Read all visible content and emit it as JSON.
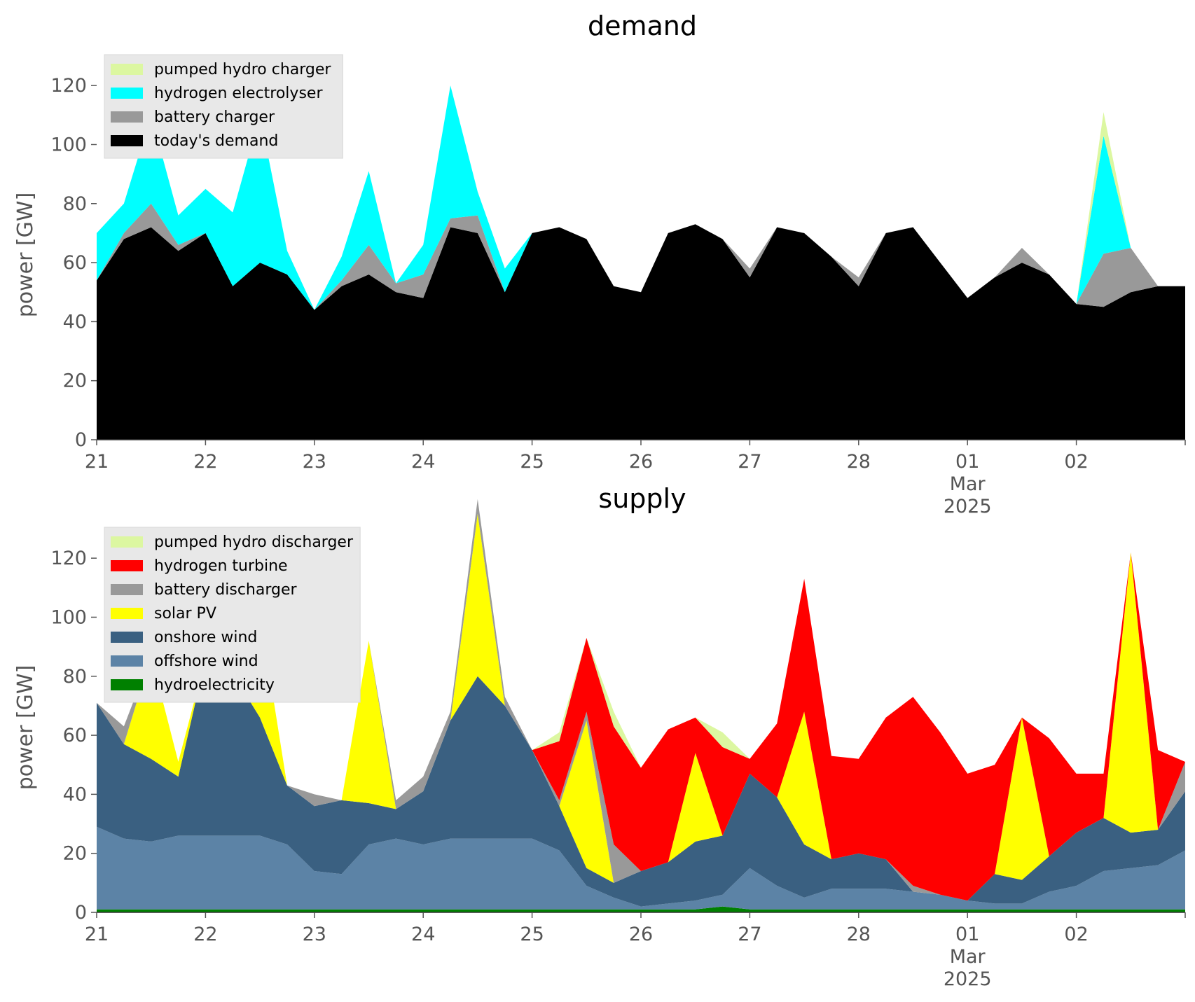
{
  "colors": {
    "pumped_hydro": "#dcf7a1",
    "hydrogen_electrolyser": "#00ffff",
    "battery": "#999999",
    "demand": "#000000",
    "hydrogen_turbine": "#ff0000",
    "solar": "#ffff00",
    "onshore": "#3a6081",
    "offshore": "#5c83a6",
    "hydro": "#008000",
    "legend_bg": "#e8e8e8",
    "tick_text": "#555555"
  },
  "chart_data": [
    {
      "type": "area",
      "title": "demand",
      "ylabel": "power [GW]",
      "ylim": [
        0,
        130
      ],
      "yticks": [
        "0",
        "20",
        "40",
        "60",
        "80",
        "100",
        "120"
      ],
      "xticks": [
        "21",
        "22",
        "23",
        "24",
        "25",
        "26",
        "27",
        "28",
        "01",
        "02"
      ],
      "xtick_sub": [
        "Mar",
        "2025"
      ],
      "x_start": "2025-02-21",
      "x_end": "2025-03-03",
      "x": [
        0,
        0.25,
        0.5,
        0.75,
        1,
        1.25,
        1.5,
        1.75,
        2,
        2.25,
        2.5,
        2.75,
        3,
        3.25,
        3.5,
        3.75,
        4,
        4.25,
        4.5,
        4.75,
        5,
        5.25,
        5.5,
        5.75,
        6,
        6.25,
        6.5,
        6.75,
        7,
        7.25,
        7.5,
        7.75,
        8,
        8.25,
        8.5,
        8.75,
        9,
        9.25,
        9.5,
        9.75,
        10
      ],
      "legend": [
        "pumped hydro charger",
        "hydrogen electrolyser",
        "battery charger",
        "today's demand"
      ],
      "legend_position": "upper left",
      "series": [
        {
          "name": "today's demand",
          "color_key": "demand",
          "values": [
            54,
            68,
            72,
            64,
            70,
            52,
            60,
            56,
            44,
            52,
            56,
            50,
            48,
            72,
            70,
            50,
            70,
            72,
            68,
            52,
            50,
            70,
            73,
            68,
            55,
            72,
            70,
            62,
            52,
            70,
            72,
            60,
            48,
            55,
            60,
            56,
            46,
            45,
            50,
            52,
            52
          ]
        },
        {
          "name": "battery charger",
          "color_key": "battery",
          "values": [
            0,
            2,
            8,
            2,
            0,
            0,
            0,
            0,
            0,
            2,
            10,
            3,
            8,
            3,
            6,
            0,
            0,
            0,
            0,
            0,
            0,
            0,
            0,
            0,
            3,
            0,
            0,
            0,
            3,
            0,
            0,
            0,
            0,
            0,
            5,
            0,
            0,
            18,
            15,
            0,
            0
          ]
        },
        {
          "name": "hydrogen electrolyser",
          "color_key": "hydrogen_electrolyser",
          "values": [
            16,
            10,
            30,
            10,
            15,
            25,
            50,
            8,
            0,
            8,
            25,
            0,
            10,
            45,
            8,
            8,
            0,
            0,
            0,
            0,
            0,
            0,
            0,
            0,
            0,
            0,
            0,
            0,
            0,
            0,
            0,
            0,
            0,
            0,
            0,
            0,
            0,
            40,
            0,
            0,
            0
          ]
        },
        {
          "name": "pumped hydro charger",
          "color_key": "pumped_hydro",
          "values": [
            0,
            0,
            0,
            0,
            0,
            0,
            0,
            0,
            0,
            0,
            0,
            0,
            0,
            0,
            0,
            0,
            0,
            0,
            0,
            0,
            0,
            0,
            0,
            0,
            0,
            0,
            0,
            0,
            0,
            0,
            0,
            0,
            0,
            0,
            0,
            0,
            0,
            8,
            0,
            0,
            0
          ]
        }
      ]
    },
    {
      "type": "area",
      "title": "supply",
      "ylabel": "power [GW]",
      "ylim": [
        0,
        130
      ],
      "yticks": [
        "0",
        "20",
        "40",
        "60",
        "80",
        "100",
        "120"
      ],
      "xticks": [
        "21",
        "22",
        "23",
        "24",
        "25",
        "26",
        "27",
        "28",
        "01",
        "02"
      ],
      "xtick_sub": [
        "Mar",
        "2025"
      ],
      "x_start": "2025-02-21",
      "x_end": "2025-03-03",
      "x": [
        0,
        0.25,
        0.5,
        0.75,
        1,
        1.25,
        1.5,
        1.75,
        2,
        2.25,
        2.5,
        2.75,
        3,
        3.25,
        3.5,
        3.75,
        4,
        4.25,
        4.5,
        4.75,
        5,
        5.25,
        5.5,
        5.75,
        6,
        6.25,
        6.5,
        6.75,
        7,
        7.25,
        7.5,
        7.75,
        8,
        8.25,
        8.5,
        8.75,
        9,
        9.25,
        9.5,
        9.75,
        10
      ],
      "legend": [
        "pumped hydro discharger",
        "hydrogen turbine",
        "battery discharger",
        "solar PV",
        "onshore wind",
        "offshore wind",
        "hydroelectricity"
      ],
      "legend_position": "upper left",
      "series": [
        {
          "name": "hydroelectricity",
          "color_key": "hydro",
          "values": [
            1,
            1,
            1,
            1,
            1,
            1,
            1,
            1,
            1,
            1,
            1,
            1,
            1,
            1,
            1,
            1,
            1,
            1,
            1,
            1,
            1,
            1,
            1,
            2,
            1,
            1,
            1,
            1,
            1,
            1,
            1,
            1,
            1,
            1,
            1,
            1,
            1,
            1,
            1,
            1,
            1
          ]
        },
        {
          "name": "offshore wind",
          "color_key": "offshore",
          "values": [
            28,
            24,
            23,
            25,
            25,
            25,
            25,
            22,
            13,
            12,
            22,
            24,
            22,
            24,
            24,
            24,
            24,
            20,
            8,
            4,
            1,
            2,
            3,
            4,
            14,
            8,
            4,
            7,
            7,
            7,
            6,
            5,
            3,
            2,
            2,
            6,
            8,
            13,
            14,
            15,
            20
          ]
        },
        {
          "name": "onshore wind",
          "color_key": "onshore",
          "values": [
            42,
            32,
            28,
            20,
            60,
            55,
            40,
            20,
            22,
            25,
            14,
            10,
            18,
            40,
            55,
            45,
            30,
            15,
            6,
            5,
            12,
            14,
            20,
            20,
            32,
            30,
            18,
            10,
            12,
            10,
            0,
            0,
            0,
            10,
            8,
            12,
            18,
            18,
            12,
            12,
            20
          ]
        },
        {
          "name": "solar PV",
          "color_key": "solar",
          "values": [
            0,
            0,
            35,
            5,
            0,
            0,
            35,
            0,
            0,
            0,
            55,
            0,
            0,
            0,
            55,
            0,
            0,
            0,
            50,
            0,
            0,
            0,
            30,
            0,
            0,
            0,
            45,
            0,
            0,
            0,
            0,
            0,
            0,
            0,
            55,
            0,
            0,
            0,
            95,
            0,
            0
          ]
        },
        {
          "name": "battery discharger",
          "color_key": "battery",
          "values": [
            0,
            6,
            0,
            0,
            0,
            0,
            0,
            0,
            4,
            0,
            0,
            3,
            5,
            3,
            5,
            3,
            0,
            2,
            3,
            13,
            0,
            0,
            0,
            0,
            0,
            0,
            0,
            0,
            0,
            0,
            2,
            0,
            0,
            0,
            0,
            0,
            0,
            0,
            0,
            0,
            10
          ]
        },
        {
          "name": "hydrogen turbine",
          "color_key": "hydrogen_turbine",
          "values": [
            0,
            0,
            0,
            0,
            0,
            0,
            0,
            0,
            0,
            0,
            0,
            0,
            0,
            0,
            0,
            0,
            0,
            20,
            25,
            40,
            35,
            45,
            12,
            30,
            5,
            25,
            45,
            35,
            32,
            48,
            64,
            55,
            43,
            37,
            0,
            40,
            20,
            15,
            0,
            27,
            0
          ]
        },
        {
          "name": "pumped hydro discharger",
          "color_key": "pumped_hydro",
          "values": [
            0,
            0,
            0,
            0,
            0,
            0,
            0,
            0,
            0,
            0,
            0,
            0,
            0,
            0,
            0,
            0,
            0,
            3,
            0,
            5,
            0,
            0,
            0,
            5,
            0,
            0,
            0,
            0,
            0,
            0,
            0,
            0,
            0,
            0,
            0,
            0,
            0,
            0,
            0,
            0,
            0
          ]
        }
      ]
    }
  ]
}
